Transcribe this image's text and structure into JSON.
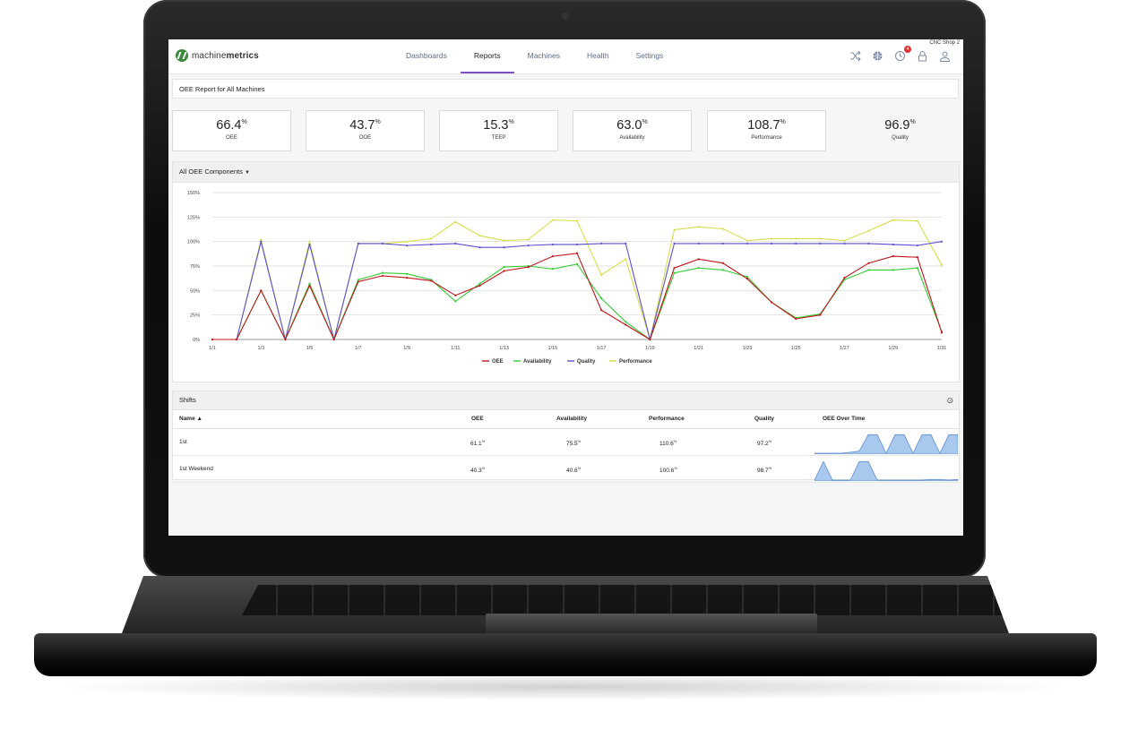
{
  "app": {
    "logo_prefix": "machine",
    "logo_suffix": "metrics",
    "shop_name": "CNC Shop 2",
    "notification_count": "4"
  },
  "nav": {
    "items": [
      {
        "label": "Dashboards"
      },
      {
        "label": "Reports",
        "active": true
      },
      {
        "label": "Machines"
      },
      {
        "label": "Health"
      },
      {
        "label": "Settings"
      }
    ],
    "icons": [
      "shuffle-icon",
      "globe-icon",
      "notification-icon",
      "lock-icon",
      "user-icon"
    ]
  },
  "report": {
    "title": "OEE Report for All Machines"
  },
  "kpis": [
    {
      "value": "66.4",
      "unit": "%",
      "label": "OEE"
    },
    {
      "value": "43.7",
      "unit": "%",
      "label": "OOE"
    },
    {
      "value": "15.3",
      "unit": "%",
      "label": "TEEP"
    },
    {
      "value": "63.0",
      "unit": "%",
      "label": "Availability"
    },
    {
      "value": "108.7",
      "unit": "%",
      "label": "Performance"
    },
    {
      "value": "96.9",
      "unit": "%",
      "label": "Quality"
    }
  ],
  "chart_panel": {
    "selector_label": "All OEE Components"
  },
  "chart_data": {
    "type": "line",
    "x": [
      "1/1",
      "1/2",
      "1/3",
      "1/4",
      "1/5",
      "1/6",
      "1/7",
      "1/8",
      "1/9",
      "1/10",
      "1/11",
      "1/12",
      "1/13",
      "1/14",
      "1/15",
      "1/16",
      "1/17",
      "1/18",
      "1/19",
      "1/20",
      "1/21",
      "1/22",
      "1/23",
      "1/24",
      "1/25",
      "1/26",
      "1/27",
      "1/28",
      "1/29",
      "1/30",
      "1/31"
    ],
    "x_tick_labels": [
      "1/1",
      "1/3",
      "1/5",
      "1/7",
      "1/9",
      "1/11",
      "1/13",
      "1/15",
      "1/17",
      "1/19",
      "1/21",
      "1/23",
      "1/25",
      "1/27",
      "1/29",
      "1/31"
    ],
    "y_tick_labels": [
      "0%",
      "25%",
      "50%",
      "75%",
      "100%",
      "125%",
      "150%"
    ],
    "ylim": [
      0,
      150
    ],
    "grid": true,
    "legend_position": "bottom",
    "series": [
      {
        "name": "OEE",
        "color": "#c0161c",
        "values": [
          0,
          0,
          50,
          0,
          55,
          0,
          59,
          65,
          63,
          60,
          45,
          55,
          70,
          74,
          85,
          88,
          30,
          15,
          0,
          73,
          82,
          78,
          62,
          38,
          21,
          25,
          63,
          78,
          85,
          84,
          7
        ]
      },
      {
        "name": "Availability",
        "color": "#33cc33",
        "values": [
          0,
          0,
          50,
          0,
          57,
          0,
          61,
          68,
          67,
          61,
          39,
          57,
          74,
          75,
          72,
          77,
          42,
          18,
          0,
          68,
          73,
          71,
          64,
          38,
          22,
          26,
          61,
          71,
          71,
          73,
          8
        ]
      },
      {
        "name": "Quality",
        "color": "#5a4fcf",
        "values": [
          0,
          0,
          100,
          0,
          97,
          0,
          98,
          98,
          96,
          97,
          98,
          94,
          94,
          96,
          97,
          97,
          98,
          98,
          0,
          98,
          98,
          98,
          98,
          98,
          98,
          98,
          98,
          98,
          97,
          96,
          100
        ]
      },
      {
        "name": "Performance",
        "color": "#d8dc4a",
        "values": [
          0,
          0,
          102,
          0,
          100,
          0,
          98,
          98,
          100,
          103,
          120,
          106,
          101,
          102,
          122,
          121,
          66,
          82,
          0,
          112,
          115,
          113,
          101,
          103,
          103,
          103,
          101,
          111,
          122,
          121,
          76
        ]
      }
    ]
  },
  "shifts": {
    "title": "Shifts",
    "columns": {
      "name": "Name",
      "oee": "OEE",
      "availability": "Availability",
      "performance": "Performance",
      "quality": "Quality",
      "over_time": "OEE Over Time"
    },
    "rows": [
      {
        "name": "1st",
        "oee": "61.1",
        "availability": "75.5",
        "performance": "110.6",
        "quality": "97.2",
        "unit": "%",
        "spark": [
          0,
          0,
          0,
          0,
          5,
          10,
          90,
          90,
          0,
          90,
          90,
          0,
          90,
          90,
          0,
          90,
          90
        ]
      },
      {
        "name": "1st Weekend",
        "oee": "40.3",
        "availability": "40.6",
        "performance": "100.6",
        "quality": "98.7",
        "unit": "%",
        "spark": [
          0,
          90,
          0,
          0,
          0,
          90,
          90,
          0,
          0,
          0,
          0,
          0,
          0,
          3,
          3,
          0,
          3
        ]
      }
    ]
  }
}
